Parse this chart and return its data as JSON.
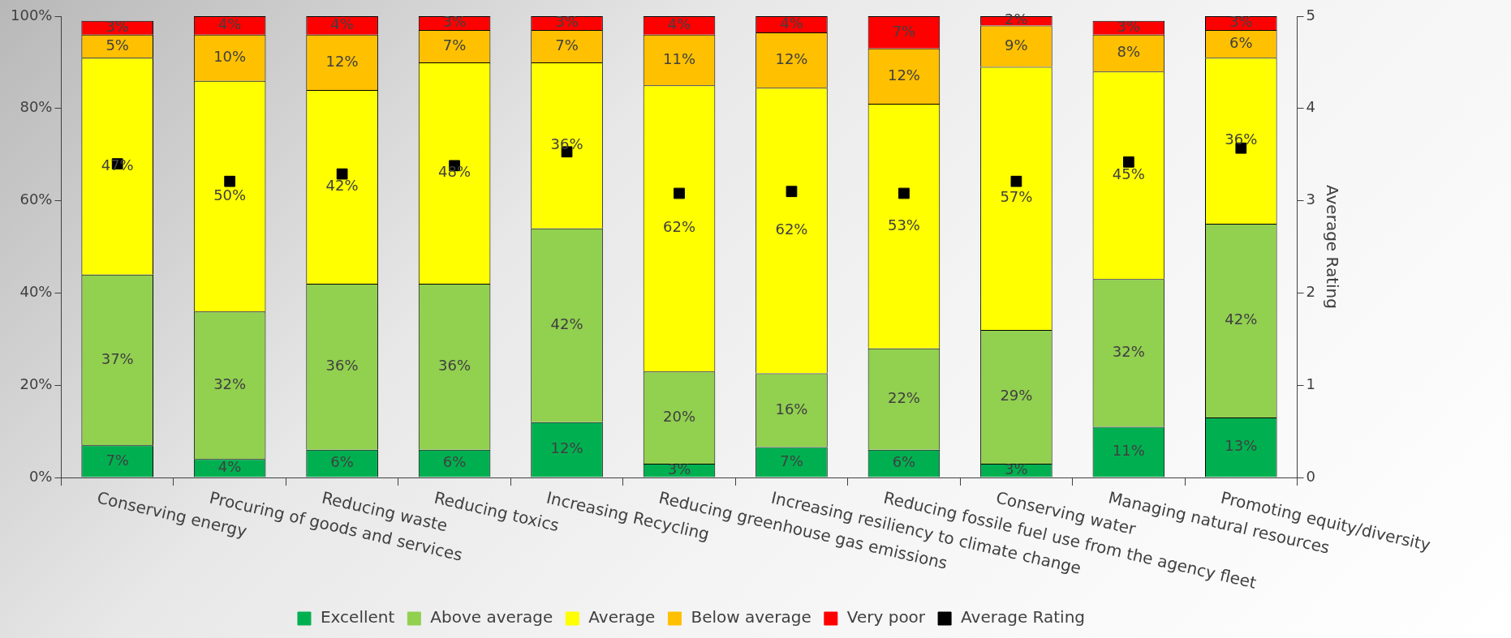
{
  "chart_data": {
    "type": "bar",
    "stacked": true,
    "legend": "bottom",
    "marker": "square",
    "y2label": "Average Rating",
    "categories": [
      "Conserving energy",
      "Procuring of goods and services",
      "Reducing waste",
      "Reducing toxics",
      "Increasing Recycling",
      "Reducing greenhouse gas emissions",
      "Increasing resiliency to climate change",
      "Reducing fossile fuel use from the agency fleet",
      "Conserving water",
      "Managing natural resources",
      "Promoting equity/diversity"
    ],
    "ylim": [
      0,
      100
    ],
    "yticks": [
      {
        "value": 0,
        "label": "0%"
      },
      {
        "value": 20,
        "label": "20%"
      },
      {
        "value": 40,
        "label": "40%"
      },
      {
        "value": 60,
        "label": "60%"
      },
      {
        "value": 80,
        "label": "80%"
      },
      {
        "value": 100,
        "label": "100%"
      }
    ],
    "y2lim": [
      0,
      5
    ],
    "y2ticks": [
      0,
      1,
      2,
      3,
      4,
      5
    ],
    "series": [
      {
        "name": "Excellent",
        "color": "#00b050",
        "values": [
          7,
          4,
          6,
          6,
          12,
          3,
          6.6,
          6,
          3,
          11,
          13
        ],
        "value_labels": [
          "7%",
          "4%",
          "6%",
          "6%",
          "12%",
          "3%",
          "7%",
          "6%",
          "3%",
          "11%",
          "13%"
        ]
      },
      {
        "name": "Above average",
        "color": "#92d050",
        "values": [
          37,
          32,
          36,
          36,
          42,
          20,
          16,
          22,
          29,
          32,
          42
        ],
        "value_labels": [
          "37%",
          "32%",
          "36%",
          "36%",
          "42%",
          "20%",
          "16%",
          "22%",
          "29%",
          "32%",
          "42%"
        ]
      },
      {
        "name": "Average",
        "color": "#ffff00",
        "values": [
          47,
          50,
          42,
          48,
          36,
          62,
          61.9,
          53,
          57,
          45,
          36
        ],
        "value_labels": [
          "47%",
          "50%",
          "42%",
          "48%",
          "36%",
          "62%",
          "62%",
          "53%",
          "57%",
          "45%",
          "36%"
        ]
      },
      {
        "name": "Below average",
        "color": "#ffc000",
        "values": [
          5,
          10,
          12,
          7,
          7,
          11,
          12,
          12,
          9,
          8,
          6
        ],
        "value_labels": [
          "5%",
          "10%",
          "12%",
          "7%",
          "7%",
          "11%",
          "12%",
          "12%",
          "9%",
          "8%",
          "6%"
        ]
      },
      {
        "name": "Very poor",
        "color": "#ff0000",
        "values": [
          3,
          4,
          4,
          3,
          3,
          4,
          3.5,
          7,
          2,
          3,
          3
        ],
        "value_labels": [
          "3%",
          "4%",
          "4%",
          "3%",
          "3%",
          "4%",
          "4%",
          "7%",
          "2%",
          "3%",
          "3%"
        ]
      },
      {
        "name": "Average Rating",
        "type": "scatter",
        "axis": "y2",
        "color": "#000000",
        "values": [
          3.4,
          3.21,
          3.29,
          3.38,
          3.53,
          3.08,
          3.1,
          3.08,
          3.21,
          3.42,
          3.57
        ]
      }
    ]
  }
}
